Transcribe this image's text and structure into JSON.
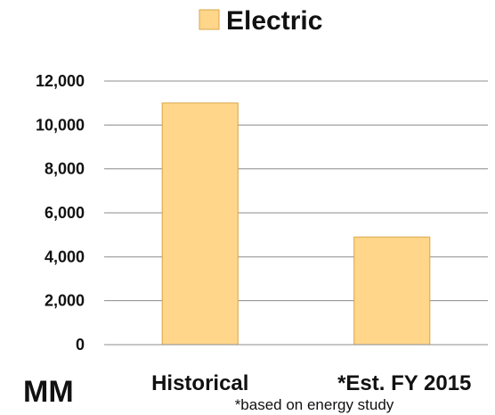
{
  "chart_data": {
    "type": "bar",
    "categories": [
      "Historical",
      "*Est. FY 2015"
    ],
    "series": [
      {
        "name": "Electric",
        "values": [
          11000,
          4900
        ]
      }
    ],
    "ylim": [
      0,
      12000
    ],
    "yticks": [
      0,
      2000,
      4000,
      6000,
      8000,
      10000,
      12000
    ],
    "ytick_labels": [
      "0",
      "2,000",
      "4,000",
      "6,000",
      "8,000",
      "10,000",
      "12,000"
    ],
    "unit_label": "MM",
    "note": "*based on energy study",
    "legend_position": "top-center",
    "grid": true,
    "colors": {
      "bar_fill": "#FFD68A",
      "bar_stroke": "#D9A64A",
      "grid": "#8c8c8c"
    }
  }
}
